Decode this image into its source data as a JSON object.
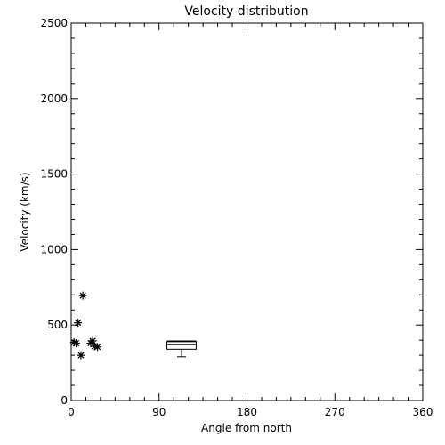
{
  "chart_data": {
    "type": "scatter",
    "title": "Velocity distribution",
    "xlabel": "Angle from north",
    "ylabel": "Velocity (km/s)",
    "xlim": [
      0,
      360
    ],
    "ylim": [
      0,
      2500
    ],
    "x_ticks": [
      0,
      90,
      180,
      270,
      360
    ],
    "y_ticks": [
      0,
      500,
      1000,
      1500,
      2000,
      2500
    ],
    "x_tick_labels": [
      "0",
      "90",
      "180",
      "270",
      "360"
    ],
    "y_tick_labels": [
      "0",
      "500",
      "1000",
      "1500",
      "2000",
      "2500"
    ],
    "grid": false,
    "legend": "none",
    "points": [
      {
        "x": 3,
        "y": 385
      },
      {
        "x": 5,
        "y": 380
      },
      {
        "x": 7,
        "y": 515
      },
      {
        "x": 10,
        "y": 300
      },
      {
        "x": 12,
        "y": 695
      },
      {
        "x": 20,
        "y": 380
      },
      {
        "x": 22,
        "y": 395
      },
      {
        "x": 24,
        "y": 360
      },
      {
        "x": 27,
        "y": 355
      }
    ],
    "boxplot": {
      "x_center": 113,
      "x_halfwidth": 15,
      "whisker_low": 290,
      "q1": 340,
      "median": 370,
      "q3": 390,
      "whisker_high": 395
    }
  }
}
